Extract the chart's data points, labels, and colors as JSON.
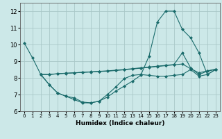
{
  "xlabel": "Humidex (Indice chaleur)",
  "xlim": [
    -0.5,
    23.5
  ],
  "ylim": [
    6.0,
    12.5
  ],
  "yticks": [
    6,
    7,
    8,
    9,
    10,
    11,
    12
  ],
  "xticks": [
    0,
    1,
    2,
    3,
    4,
    5,
    6,
    7,
    8,
    9,
    10,
    11,
    12,
    13,
    14,
    15,
    16,
    17,
    18,
    19,
    20,
    21,
    22,
    23
  ],
  "bg_color": "#cce8e8",
  "grid_color": "#aac8c8",
  "line_color": "#1a6b6b",
  "line1_x": [
    0,
    1,
    2,
    3,
    4,
    5,
    6,
    7,
    8,
    9,
    10,
    11,
    12,
    13,
    14,
    15,
    16,
    17,
    18,
    19,
    20,
    21,
    22,
    23
  ],
  "line1_y": [
    10.1,
    9.2,
    8.2,
    7.6,
    7.1,
    6.9,
    6.7,
    6.5,
    6.5,
    6.6,
    6.85,
    7.2,
    7.5,
    7.8,
    8.15,
    9.3,
    11.35,
    12.0,
    12.0,
    10.9,
    10.4,
    9.5,
    8.2,
    8.5
  ],
  "line2_x": [
    2,
    3,
    4,
    5,
    6,
    7,
    8,
    9,
    10,
    11,
    12,
    13,
    14,
    15,
    16,
    17,
    18,
    19,
    20,
    21,
    22,
    23
  ],
  "line2_y": [
    8.2,
    8.2,
    8.25,
    8.28,
    8.3,
    8.33,
    8.36,
    8.39,
    8.42,
    8.46,
    8.5,
    8.55,
    8.6,
    8.65,
    8.7,
    8.75,
    8.8,
    9.5,
    8.6,
    8.2,
    8.4,
    8.5
  ],
  "line3_x": [
    2,
    3,
    4,
    5,
    6,
    7,
    8,
    9,
    10,
    11,
    12,
    13,
    14,
    15,
    16,
    17,
    18,
    19,
    20,
    21,
    22,
    23
  ],
  "line3_y": [
    8.2,
    7.6,
    7.1,
    6.9,
    6.8,
    6.55,
    6.5,
    6.6,
    7.0,
    7.45,
    7.95,
    8.15,
    8.2,
    8.15,
    8.1,
    8.1,
    8.15,
    8.2,
    8.5,
    8.1,
    8.2,
    8.5
  ],
  "line4_x": [
    2,
    3,
    4,
    5,
    6,
    7,
    8,
    9,
    10,
    11,
    12,
    13,
    14,
    15,
    16,
    17,
    18,
    19,
    20,
    21,
    22,
    23
  ],
  "line4_y": [
    8.2,
    8.2,
    8.24,
    8.27,
    8.3,
    8.33,
    8.35,
    8.38,
    8.4,
    8.44,
    8.48,
    8.53,
    8.58,
    8.63,
    8.68,
    8.73,
    8.78,
    8.83,
    8.55,
    8.3,
    8.42,
    8.52
  ],
  "markersize": 2.5
}
